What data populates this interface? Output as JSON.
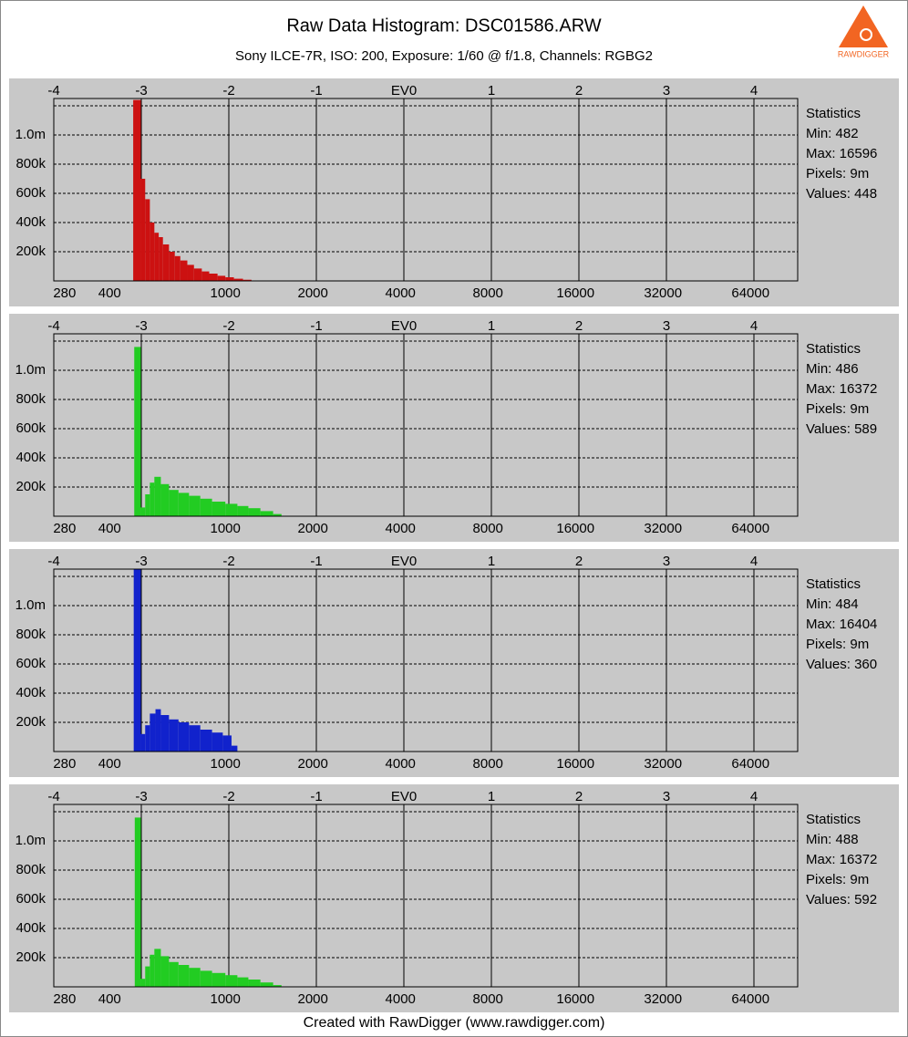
{
  "header": {
    "title": "Raw Data Histogram: DSC01586.ARW",
    "subtitle": "Sony ILCE-7R, ISO: 200, Exposure: 1/60 @ f/1.8, Channels: RGBG2"
  },
  "logo": {
    "text": "RAWDIGGER"
  },
  "footer": "Created with RawDigger (www.rawdigger.com)",
  "chart_data": [
    {
      "type": "histogram",
      "color": "#cc1111",
      "log_x": true,
      "grid": true,
      "bins": [
        482,
        512,
        530,
        550,
        570,
        590,
        610,
        640,
        670,
        700,
        740,
        780,
        830,
        880,
        940,
        1000,
        1070,
        1150,
        1230
      ],
      "values": [
        1240000,
        700000,
        560000,
        400000,
        330000,
        300000,
        250000,
        200000,
        170000,
        140000,
        110000,
        85000,
        65000,
        50000,
        35000,
        25000,
        15000,
        8000
      ],
      "xlim": [
        257,
        93000
      ],
      "xticks": [
        280,
        400,
        1000,
        2000,
        4000,
        8000,
        16000,
        32000,
        64000
      ],
      "x2lim": [
        -4,
        4.5
      ],
      "x2ticks": [
        -4,
        -3,
        -2,
        -1,
        {
          "value": 0,
          "label": "EV0"
        },
        1,
        2,
        3,
        4
      ],
      "ylim": [
        0,
        1250000
      ],
      "yticks": [
        {
          "value": 200000,
          "label": "200k"
        },
        {
          "value": 400000,
          "label": "400k"
        },
        {
          "value": 600000,
          "label": "600k"
        },
        {
          "value": 800000,
          "label": "800k"
        },
        {
          "value": 1000000,
          "label": "1.0m"
        },
        {
          "value": 1200000,
          "label": null
        }
      ],
      "statistics": [
        "Statistics",
        "Min: 482",
        "Max: 16596",
        "Pixels: 9m",
        "Values: 448"
      ]
    },
    {
      "type": "histogram",
      "color": "#22cc22",
      "log_x": true,
      "grid": true,
      "bins": [
        486,
        512,
        530,
        550,
        570,
        600,
        640,
        690,
        750,
        820,
        900,
        1000,
        1100,
        1200,
        1320,
        1460,
        1560
      ],
      "values": [
        1160000,
        60000,
        150000,
        230000,
        270000,
        220000,
        180000,
        160000,
        140000,
        120000,
        100000,
        85000,
        70000,
        55000,
        35000,
        15000
      ],
      "xlim": [
        257,
        93000
      ],
      "xticks": [
        280,
        400,
        1000,
        2000,
        4000,
        8000,
        16000,
        32000,
        64000
      ],
      "x2lim": [
        -4,
        4.5
      ],
      "x2ticks": [
        -4,
        -3,
        -2,
        -1,
        {
          "value": 0,
          "label": "EV0"
        },
        1,
        2,
        3,
        4
      ],
      "ylim": [
        0,
        1250000
      ],
      "yticks": [
        {
          "value": 200000,
          "label": "200k"
        },
        {
          "value": 400000,
          "label": "400k"
        },
        {
          "value": 600000,
          "label": "600k"
        },
        {
          "value": 800000,
          "label": "800k"
        },
        {
          "value": 1000000,
          "label": "1.0m"
        },
        {
          "value": 1200000,
          "label": null
        }
      ],
      "statistics": [
        "Statistics",
        "Min: 486",
        "Max: 16372",
        "Pixels: 9m",
        "Values: 589"
      ]
    },
    {
      "type": "histogram",
      "color": "#1122cc",
      "log_x": true,
      "grid": true,
      "bins": [
        484,
        512,
        530,
        550,
        575,
        600,
        640,
        690,
        750,
        820,
        900,
        980,
        1050,
        1100
      ],
      "values": [
        1250000,
        120000,
        180000,
        260000,
        290000,
        250000,
        220000,
        200000,
        180000,
        150000,
        130000,
        110000,
        40000
      ],
      "xlim": [
        257,
        93000
      ],
      "xticks": [
        280,
        400,
        1000,
        2000,
        4000,
        8000,
        16000,
        32000,
        64000
      ],
      "x2lim": [
        -4,
        4.5
      ],
      "x2ticks": [
        -4,
        -3,
        -2,
        -1,
        {
          "value": 0,
          "label": "EV0"
        },
        1,
        2,
        3,
        4
      ],
      "ylim": [
        0,
        1250000
      ],
      "yticks": [
        {
          "value": 200000,
          "label": "200k"
        },
        {
          "value": 400000,
          "label": "400k"
        },
        {
          "value": 600000,
          "label": "600k"
        },
        {
          "value": 800000,
          "label": "800k"
        },
        {
          "value": 1000000,
          "label": "1.0m"
        },
        {
          "value": 1200000,
          "label": null
        }
      ],
      "statistics": [
        "Statistics",
        "Min: 484",
        "Max: 16404",
        "Pixels: 9m",
        "Values: 360"
      ]
    },
    {
      "type": "histogram",
      "color": "#22cc22",
      "log_x": true,
      "grid": true,
      "bins": [
        488,
        512,
        530,
        550,
        570,
        600,
        640,
        690,
        750,
        820,
        900,
        1000,
        1100,
        1200,
        1320,
        1460,
        1560
      ],
      "values": [
        1160000,
        55000,
        140000,
        220000,
        260000,
        210000,
        170000,
        150000,
        130000,
        110000,
        95000,
        80000,
        65000,
        50000,
        30000,
        12000
      ],
      "xlim": [
        257,
        93000
      ],
      "xticks": [
        280,
        400,
        1000,
        2000,
        4000,
        8000,
        16000,
        32000,
        64000
      ],
      "x2lim": [
        -4,
        4.5
      ],
      "x2ticks": [
        -4,
        -3,
        -2,
        -1,
        {
          "value": 0,
          "label": "EV0"
        },
        1,
        2,
        3,
        4
      ],
      "ylim": [
        0,
        1250000
      ],
      "yticks": [
        {
          "value": 200000,
          "label": "200k"
        },
        {
          "value": 400000,
          "label": "400k"
        },
        {
          "value": 600000,
          "label": "600k"
        },
        {
          "value": 800000,
          "label": "800k"
        },
        {
          "value": 1000000,
          "label": "1.0m"
        },
        {
          "value": 1200000,
          "label": null
        }
      ],
      "statistics": [
        "Statistics",
        "Min: 488",
        "Max: 16372",
        "Pixels: 9m",
        "Values: 592"
      ]
    }
  ]
}
